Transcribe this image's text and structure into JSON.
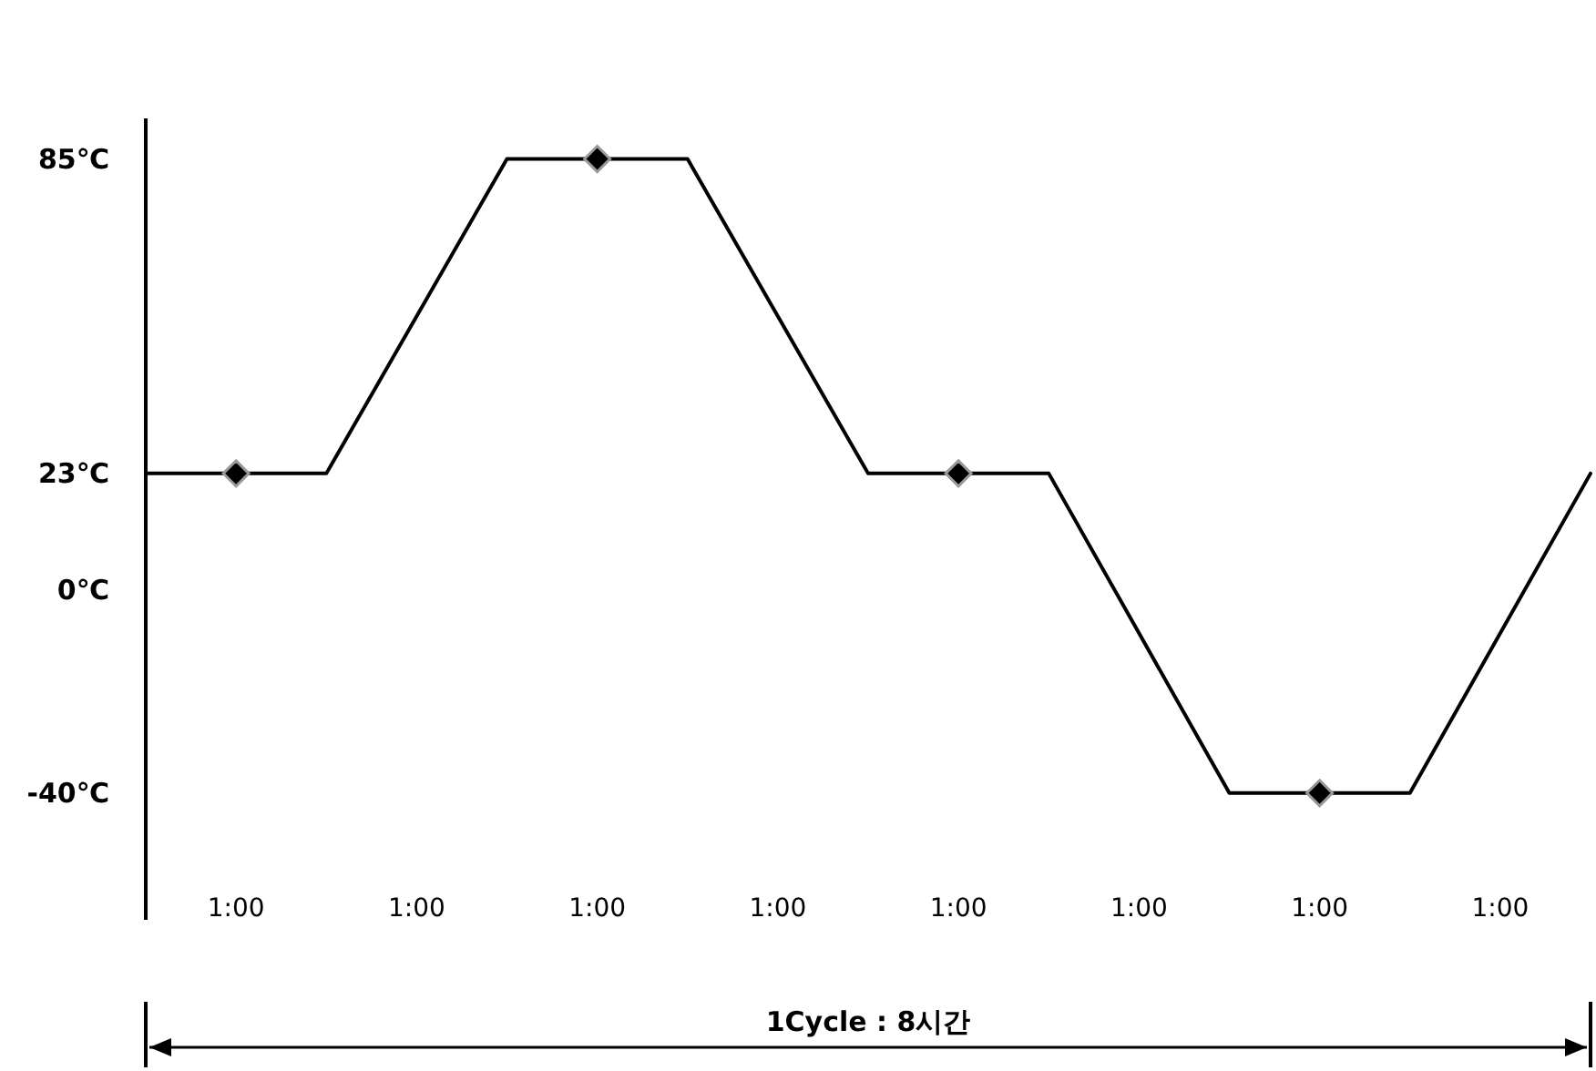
{
  "chart_data": {
    "type": "line",
    "ylim": [
      -65,
      93
    ],
    "yticks": [
      {
        "value": 85,
        "label": "85℃"
      },
      {
        "value": 23,
        "label": "23℃"
      },
      {
        "value": 0,
        "label": "0℃"
      },
      {
        "value": -40,
        "label": "-40℃"
      }
    ],
    "categories": [
      null,
      "1:00",
      null,
      "1:00",
      null,
      "1:00",
      null,
      "1:00",
      null,
      "1:00",
      null,
      "1:00",
      null,
      "1:00",
      null,
      "1:00",
      null
    ],
    "series": [
      {
        "color": "#000000",
        "values": [
          23,
          23,
          23,
          54,
          85,
          85,
          85,
          54,
          23,
          23,
          23,
          -8.5,
          -40,
          -40,
          -40,
          -8.5,
          23
        ]
      },
      {
        "type": "scatter",
        "color": "#000000",
        "marker": "diamond",
        "values": [
          null,
          23,
          null,
          null,
          null,
          85,
          null,
          null,
          null,
          23,
          null,
          null,
          null,
          -40,
          null,
          null,
          null
        ]
      }
    ],
    "annotations": [
      "1Cycle : 8시간"
    ]
  }
}
